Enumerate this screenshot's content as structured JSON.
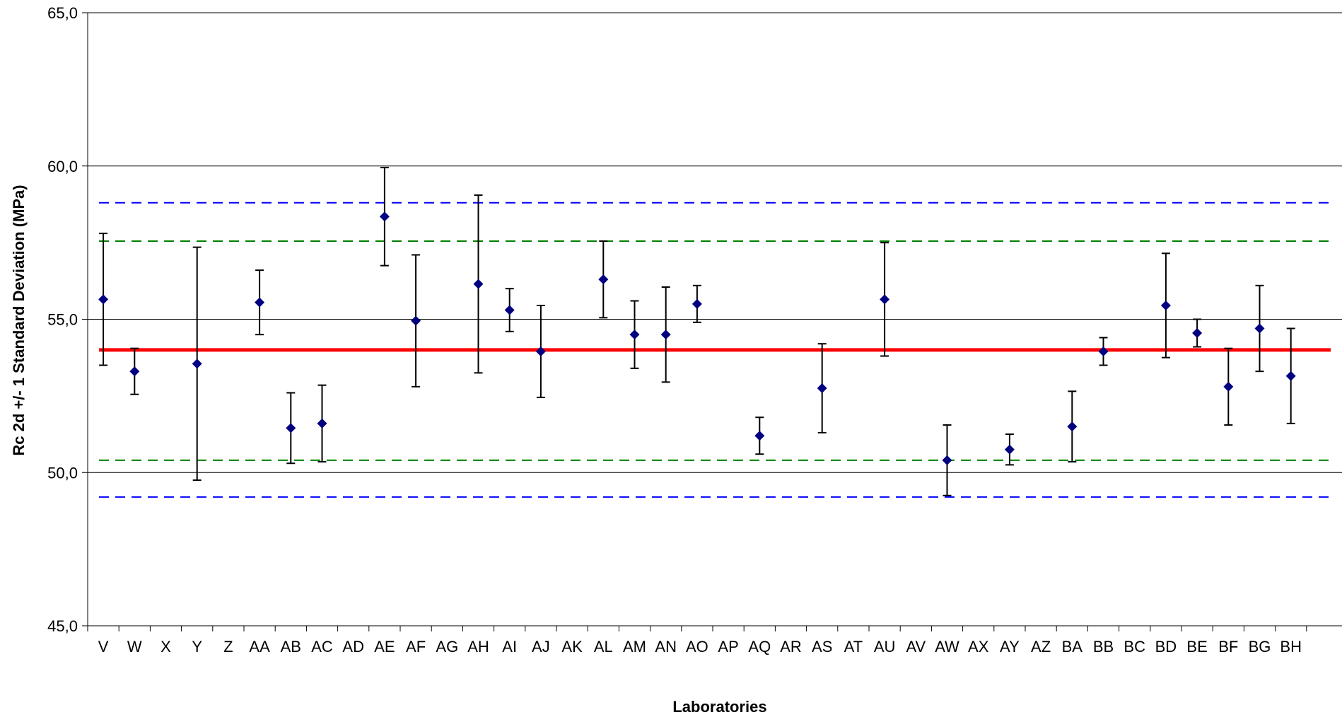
{
  "chart_data": {
    "type": "scatter",
    "title": "",
    "xlabel": "Laboratories",
    "ylabel": "Rc 2d +/- 1 Standard Deviation (MPa)",
    "ylim": [
      45,
      65
    ],
    "y_ticks": [
      "45,0",
      "50,0",
      "55,0",
      "60,0",
      "65,0"
    ],
    "y_tick_values": [
      45,
      50,
      55,
      60,
      65
    ],
    "grid": true,
    "categories": [
      "V",
      "W",
      "X",
      "Y",
      "Z",
      "AA",
      "AB",
      "AC",
      "AD",
      "AE",
      "AF",
      "AG",
      "AH",
      "AI",
      "AJ",
      "AK",
      "AL",
      "AM",
      "AN",
      "AO",
      "AP",
      "AQ",
      "AR",
      "AS",
      "AT",
      "AU",
      "AV",
      "AW",
      "AX",
      "AY",
      "AZ",
      "BA",
      "BB",
      "BC",
      "BD",
      "BE",
      "BF",
      "BG",
      "BH"
    ],
    "series": [
      {
        "values": [
          55.65,
          53.3,
          null,
          53.55,
          null,
          55.55,
          51.45,
          51.6,
          null,
          58.35,
          54.95,
          null,
          56.15,
          55.3,
          53.95,
          null,
          56.3,
          54.5,
          54.5,
          55.5,
          null,
          51.2,
          null,
          52.75,
          null,
          55.65,
          null,
          50.4,
          null,
          50.75,
          null,
          51.5,
          53.95,
          null,
          55.45,
          54.55,
          52.8,
          54.7,
          53.15
        ],
        "errors": [
          2.15,
          0.75,
          null,
          3.8,
          null,
          1.05,
          1.15,
          1.25,
          null,
          1.6,
          2.15,
          null,
          2.9,
          0.7,
          1.5,
          null,
          1.25,
          1.1,
          1.55,
          0.6,
          null,
          0.6,
          null,
          1.45,
          null,
          1.85,
          null,
          1.15,
          null,
          0.5,
          null,
          1.15,
          0.45,
          null,
          1.7,
          0.45,
          1.25,
          1.4,
          1.55
        ],
        "marker_color": "#000080",
        "error_bar_color": "#000000"
      }
    ],
    "reference_lines": [
      {
        "value": 54.0,
        "color": "#ff0000",
        "style": "solid"
      },
      {
        "value": 57.55,
        "color": "#008000",
        "style": "dashed"
      },
      {
        "value": 50.4,
        "color": "#008000",
        "style": "dashed"
      },
      {
        "value": 58.8,
        "color": "#0000ff",
        "style": "dashed"
      },
      {
        "value": 49.2,
        "color": "#0000ff",
        "style": "dashed"
      }
    ],
    "gridline_color": "#000000"
  }
}
